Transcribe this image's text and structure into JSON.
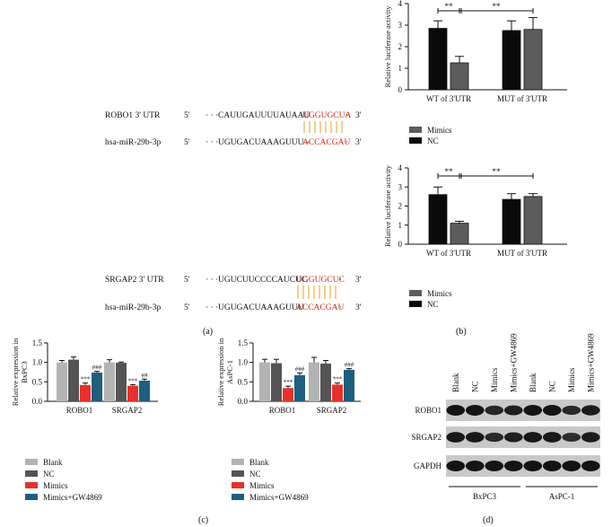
{
  "panel_labels": {
    "a": "(a)",
    "b": "(b)",
    "c": "(c)",
    "d": "(d)"
  },
  "panel_a": {
    "pairs": [
      {
        "target": {
          "label": "ROBO1 3' UTR",
          "five": "5'",
          "dots": "· · ·",
          "black": "CAUUGAUUUUAUAAU",
          "red": "UGGUGCUA",
          "tail": "·",
          "three": "3'"
        },
        "mirna": {
          "label": "hsa-miR-29b-3p",
          "five": "5'",
          "dots": "· · ·",
          "black": "UGUGACUAAAGUUU--",
          "red": "ACCACGAU",
          "tail": "·",
          "three": "3'"
        }
      },
      {
        "target": {
          "label": "SRGAP2 3' UTR",
          "five": "5'",
          "dots": "· · ·",
          "black": "UGUCUUCCCCAUCUC",
          "red": "UGGUGCUC",
          "tail": "·",
          "three": "3'"
        },
        "mirna": {
          "label": "hsa-miR-29b-3p",
          "five": "5'",
          "dots": "· · ·",
          "black": "UGUGACUAAAGUUU",
          "red": "ACCACGAU",
          "tail": "·",
          "three": "3'"
        }
      }
    ]
  },
  "chart_data": [
    {
      "type": "bar",
      "panel": "b-top",
      "ylabel": "Relative luciferase activity",
      "ylim": [
        0,
        4
      ],
      "yticks": [
        0,
        1,
        2,
        3,
        4
      ],
      "categories": [
        "WT of 3'UTR",
        "MUT of 3'UTR"
      ],
      "series": [
        {
          "name": "NC",
          "color": "#0a0a0a",
          "values": [
            2.85,
            2.75
          ],
          "errors": [
            0.35,
            0.45
          ]
        },
        {
          "name": "Mimics",
          "color": "#5c5c5c",
          "values": [
            1.25,
            2.8
          ],
          "errors": [
            0.3,
            0.55
          ]
        }
      ],
      "legend": [
        "Mimics",
        "NC"
      ],
      "significance": [
        "**",
        "**"
      ]
    },
    {
      "type": "bar",
      "panel": "b-bottom",
      "ylabel": "Relative luciferase activity",
      "ylim": [
        0,
        4
      ],
      "yticks": [
        0,
        1,
        2,
        3,
        4
      ],
      "categories": [
        "WT of 3'UTR",
        "MUT of 3'UTR"
      ],
      "series": [
        {
          "name": "NC",
          "color": "#0a0a0a",
          "values": [
            2.6,
            2.35
          ],
          "errors": [
            0.4,
            0.3
          ]
        },
        {
          "name": "Mimics",
          "color": "#5c5c5c",
          "values": [
            1.1,
            2.5
          ],
          "errors": [
            0.1,
            0.15
          ]
        }
      ],
      "legend": [
        "Mimics",
        "NC"
      ],
      "significance": [
        "**",
        "**"
      ]
    },
    {
      "type": "bar",
      "panel": "c-left",
      "ylabel": "Relative expression in BxPC3",
      "ylim": [
        0,
        1.5
      ],
      "yticks": [
        "0.0",
        "0.5",
        "1.0",
        "1.5"
      ],
      "categories": [
        "ROBO1",
        "SRGAP2"
      ],
      "series": [
        {
          "name": "Blank",
          "color": "#b3b3b3",
          "values": [
            1.0,
            1.0
          ],
          "errors": [
            0.05,
            0.07
          ]
        },
        {
          "name": "NC",
          "color": "#545454",
          "values": [
            1.07,
            0.99
          ],
          "errors": [
            0.07,
            0.02
          ]
        },
        {
          "name": "Mimics",
          "color": "#e8302a",
          "values": [
            0.42,
            0.4
          ],
          "errors": [
            0.05,
            0.03
          ]
        },
        {
          "name": "Mimics+GW4869",
          "color": "#1d5f7e",
          "values": [
            0.74,
            0.53
          ],
          "errors": [
            0.03,
            0.04
          ]
        }
      ],
      "annotations": [
        [
          "***",
          "###"
        ],
        [
          "***",
          "##"
        ]
      ],
      "legend": [
        "Blank",
        "NC",
        "Mimics",
        "Mimics+GW4869"
      ]
    },
    {
      "type": "bar",
      "panel": "c-right",
      "ylabel": "Relative expression in AsPC-1",
      "ylim": [
        0,
        1.5
      ],
      "yticks": [
        "0.0",
        "0.5",
        "1.0",
        "1.5"
      ],
      "categories": [
        "ROBO1",
        "SRGAP2"
      ],
      "series": [
        {
          "name": "Blank",
          "color": "#b3b3b3",
          "values": [
            1.0,
            1.0
          ],
          "errors": [
            0.08,
            0.13
          ]
        },
        {
          "name": "NC",
          "color": "#545454",
          "values": [
            0.98,
            0.97
          ],
          "errors": [
            0.1,
            0.08
          ]
        },
        {
          "name": "Mimics",
          "color": "#e8302a",
          "values": [
            0.34,
            0.43
          ],
          "errors": [
            0.05,
            0.04
          ]
        },
        {
          "name": "Mimics+GW4869",
          "color": "#1d5f7e",
          "values": [
            0.67,
            0.81
          ],
          "errors": [
            0.06,
            0.03
          ]
        }
      ],
      "annotations": [
        [
          "***",
          "###"
        ],
        [
          "***",
          "###"
        ]
      ],
      "legend": [
        "Blank",
        "NC",
        "Mimics",
        "Mimics+GW4869"
      ]
    }
  ],
  "panel_d": {
    "lanes": [
      "Blank",
      "NC",
      "Mimics",
      "Mimics+GW4869",
      "Blank",
      "NC",
      "Mimics",
      "Mimics+GW4869"
    ],
    "rows": [
      {
        "label": "ROBO1",
        "intensity": [
          1.0,
          1.0,
          0.75,
          0.85,
          1.0,
          1.0,
          0.7,
          0.9
        ]
      },
      {
        "label": "SRGAP2",
        "intensity": [
          0.95,
          0.95,
          0.7,
          0.85,
          0.95,
          0.95,
          0.65,
          0.9
        ]
      },
      {
        "label": "GAPDH",
        "intensity": [
          1.0,
          1.0,
          1.0,
          1.0,
          1.0,
          1.0,
          1.0,
          1.0
        ]
      }
    ],
    "groups": [
      "BxPC3",
      "AsPC-1"
    ]
  }
}
